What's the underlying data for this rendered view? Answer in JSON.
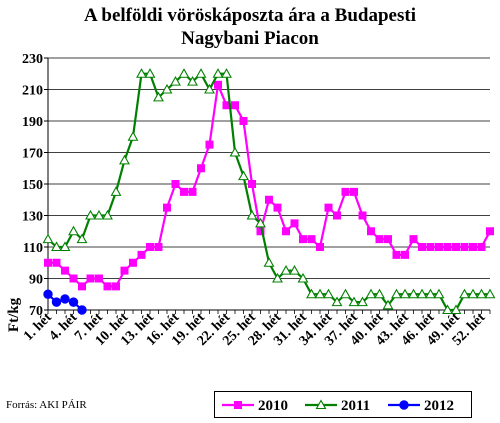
{
  "title_line1": "A belföldi vöröskáposzta ára a Budapesti",
  "title_line2": "Nagybani Piacon",
  "source": "Forrás: AKI PÁIR",
  "chart_data": {
    "type": "line",
    "ylabel": "Ft/kg",
    "ylim": [
      70,
      230
    ],
    "yticks": [
      70,
      90,
      110,
      130,
      150,
      170,
      190,
      210,
      230
    ],
    "xlim": [
      1,
      53
    ],
    "x_tick_weeks": [
      1,
      4,
      7,
      10,
      13,
      16,
      19,
      22,
      25,
      28,
      31,
      34,
      37,
      40,
      43,
      46,
      49,
      52
    ],
    "x_tick_labels": [
      "1. hét",
      "4. hét",
      "7. hét",
      "10. hét",
      "13. hét",
      "16. hét",
      "19. hét",
      "22. hét",
      "25. hét",
      "28. hét",
      "31. hét",
      "34. hét",
      "37. hét",
      "40. hét",
      "43. hét",
      "46. hét",
      "49. hét",
      "52. hét"
    ],
    "grid": true,
    "legend_position": "bottom",
    "series": [
      {
        "name": "2010",
        "color": "#ff00ff",
        "marker": "square",
        "values": [
          100,
          100,
          95,
          90,
          85,
          90,
          90,
          85,
          85,
          95,
          100,
          105,
          110,
          110,
          135,
          150,
          145,
          145,
          160,
          175,
          213,
          200,
          200,
          190,
          150,
          120,
          140,
          135,
          120,
          125,
          115,
          115,
          110,
          135,
          130,
          145,
          145,
          130,
          120,
          115,
          115,
          105,
          105,
          115,
          110,
          110,
          110,
          110,
          110,
          110,
          110,
          110,
          120
        ]
      },
      {
        "name": "2011",
        "color": "#008000",
        "marker": "triangle",
        "values": [
          115,
          110,
          110,
          120,
          115,
          130,
          130,
          130,
          145,
          165,
          180,
          220,
          220,
          205,
          210,
          215,
          220,
          215,
          220,
          210,
          220,
          220,
          170,
          155,
          130,
          125,
          100,
          90,
          95,
          95,
          90,
          80,
          80,
          80,
          75,
          80,
          75,
          75,
          80,
          80,
          73,
          80,
          80,
          80,
          80,
          80,
          80,
          70,
          70,
          80,
          80,
          80,
          80
        ]
      },
      {
        "name": "2012",
        "color": "#0000ff",
        "marker": "circle",
        "values": [
          80,
          75,
          77,
          75,
          70
        ]
      }
    ]
  }
}
